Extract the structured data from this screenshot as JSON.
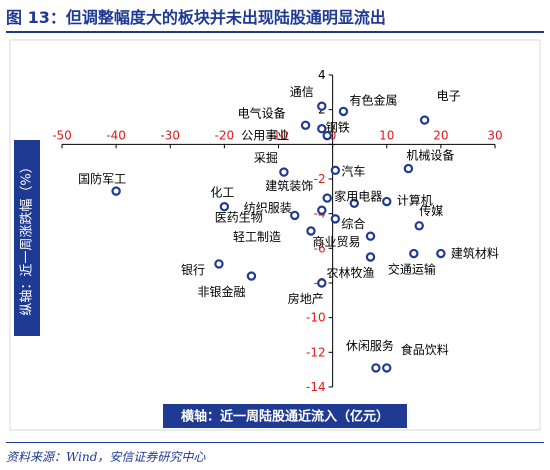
{
  "header": {
    "title": "图 13：但调整幅度大的板块并未出现陆股通明显流出"
  },
  "footer": {
    "source": "资料来源：Wind，安信证券研究中心"
  },
  "colors": {
    "accent": "#1f3a93",
    "marker": "#1f3a93",
    "tick_label": "#e31a1c",
    "axis_box_bg": "#1f3a93",
    "axis_box_text": "#ffffff"
  },
  "chart_data": {
    "type": "scatter",
    "title": "",
    "xlabel": "横轴：近一周陆股通近流入（亿元）",
    "ylabel": "纵轴：近一周涨跌幅（%）",
    "xlim": [
      -50,
      30
    ],
    "ylim": [
      -14,
      4
    ],
    "x_ticks": [
      -50,
      -40,
      -30,
      -20,
      -10,
      0,
      10,
      20,
      30
    ],
    "y_ticks": [
      4,
      2,
      0,
      -2,
      -4,
      -6,
      -8,
      -10,
      -12,
      -14
    ],
    "grid": false,
    "legend": "none",
    "points": [
      {
        "label": "通信",
        "x": -2,
        "y": 2.2
      },
      {
        "label": "有色金属",
        "x": 2,
        "y": 1.9
      },
      {
        "label": "电子",
        "x": 17,
        "y": 1.4
      },
      {
        "label": "电气设备",
        "x": -5,
        "y": 1.1
      },
      {
        "label": "钢铁",
        "x": -2,
        "y": 0.9
      },
      {
        "label": "公用事业",
        "x": -1,
        "y": 0.5
      },
      {
        "label": "采掘",
        "x": -9,
        "y": -1.6
      },
      {
        "label": "机械设备",
        "x": 14,
        "y": -1.4
      },
      {
        "label": "汽车",
        "x": 0.5,
        "y": -1.5
      },
      {
        "label": "国防军工",
        "x": -40,
        "y": -2.7
      },
      {
        "label": "建筑装饰",
        "x": -1,
        "y": -3.1
      },
      {
        "label": "计算机",
        "x": 10,
        "y": -3.3
      },
      {
        "label": "家用电器",
        "x": 4,
        "y": -3.4
      },
      {
        "label": "化工",
        "x": -20,
        "y": -3.6
      },
      {
        "label": "纺织服装",
        "x": -2,
        "y": -3.8
      },
      {
        "label": "医药生物",
        "x": -7,
        "y": -4.1
      },
      {
        "label": "综合",
        "x": 0.5,
        "y": -4.3
      },
      {
        "label": "传媒",
        "x": 16,
        "y": -4.7
      },
      {
        "label": "轻工制造",
        "x": -4,
        "y": -5.0
      },
      {
        "label": "商业贸易",
        "x": 7,
        "y": -5.3
      },
      {
        "label": "交通运输",
        "x": 15,
        "y": -6.3
      },
      {
        "label": "建筑材料",
        "x": 20,
        "y": -6.3
      },
      {
        "label": "农林牧渔",
        "x": 7,
        "y": -6.5
      },
      {
        "label": "银行",
        "x": -21,
        "y": -6.9
      },
      {
        "label": "非银金融",
        "x": -15,
        "y": -7.6
      },
      {
        "label": "房地产",
        "x": -2,
        "y": -8.0
      },
      {
        "label": "休闲服务",
        "x": 8,
        "y": -12.9
      },
      {
        "label": "食品饮料",
        "x": 10,
        "y": -12.9
      }
    ]
  }
}
